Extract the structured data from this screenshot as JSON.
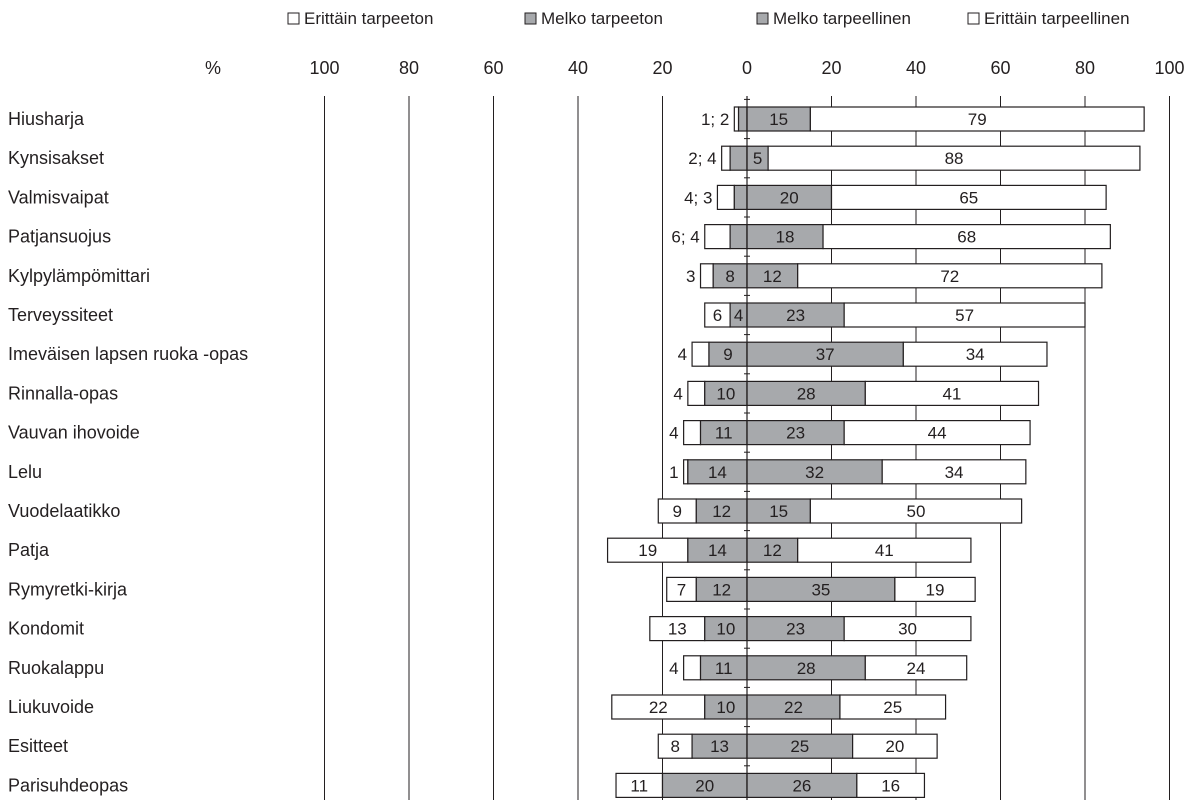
{
  "chart_data": {
    "type": "bar",
    "stacking": "diverging",
    "unit_label": "%",
    "legend": {
      "placement": "top",
      "entries": [
        {
          "label": "Erittäin tarpeeton",
          "color": "#ffffff"
        },
        {
          "label": "Melko tarpeeton",
          "color": "#a7a9ac"
        },
        {
          "label": "Melko tarpeellinen",
          "color": "#a7a9ac"
        },
        {
          "label": "Erittäin tarpeellinen",
          "color": "#ffffff"
        }
      ]
    },
    "x_ticks": [
      "100",
      "80",
      "60",
      "40",
      "20",
      "0",
      "20",
      "40",
      "60",
      "80",
      "100"
    ],
    "xlim": [
      -100,
      100
    ],
    "grid": true,
    "categories": [
      "Hiusharja",
      "Kynsisakset",
      "Valmisvaipat",
      "Patjansuojus",
      "Kylpylämpömittari",
      "Terveyssiteet",
      "Imeväisen lapsen ruoka -opas",
      "Rinnalla-opas",
      "Vauvan ihovoide",
      "Lelu",
      "Vuodelaatikko",
      "Patja",
      "Rymyretki-kirja",
      "Kondomit",
      "Ruokalappu",
      "Liukuvoide",
      "Esitteet",
      "Parisuhdeopas"
    ],
    "series": [
      {
        "name": "Erittäin tarpeeton",
        "values": [
          1,
          2,
          4,
          6,
          3,
          6,
          4,
          4,
          4,
          1,
          9,
          19,
          7,
          13,
          4,
          22,
          8,
          11
        ]
      },
      {
        "name": "Melko tarpeeton",
        "values": [
          2,
          4,
          3,
          4,
          8,
          4,
          9,
          10,
          11,
          14,
          12,
          14,
          12,
          10,
          11,
          10,
          13,
          20
        ]
      },
      {
        "name": "Melko tarpeellinen",
        "values": [
          15,
          5,
          20,
          18,
          12,
          23,
          37,
          28,
          23,
          32,
          15,
          12,
          35,
          23,
          28,
          22,
          25,
          26
        ]
      },
      {
        "name": "Erittäin tarpeellinen",
        "values": [
          79,
          88,
          65,
          68,
          72,
          57,
          34,
          41,
          44,
          34,
          50,
          41,
          19,
          30,
          24,
          25,
          20,
          16
        ]
      }
    ],
    "negative_labels": [
      "1; 2",
      "2; 4",
      "4; 3",
      "6; 4",
      "3",
      "",
      "4",
      "4",
      "4",
      "1",
      "",
      "",
      "",
      "",
      "4",
      "",
      "",
      ""
    ],
    "inside_labels": {
      "Erittäin tarpeeton": [
        "",
        "",
        "",
        "",
        "",
        "6",
        "",
        "",
        "",
        "",
        "9",
        "19",
        "7",
        "13",
        "",
        "22",
        "8",
        "11"
      ],
      "Melko tarpeeton": [
        "",
        "",
        "",
        "",
        "8",
        "4",
        "9",
        "10",
        "11",
        "14",
        "12",
        "14",
        "12",
        "10",
        "11",
        "10",
        "13",
        "20"
      ],
      "Melko tarpeellinen": [
        "15",
        "5",
        "20",
        "18",
        "12",
        "23",
        "37",
        "28",
        "23",
        "32",
        "15",
        "12",
        "35",
        "23",
        "28",
        "22",
        "25",
        "26"
      ],
      "Erittäin tarpeellinen": [
        "79",
        "88",
        "65",
        "68",
        "72",
        "57",
        "34",
        "41",
        "44",
        "34",
        "50",
        "41",
        "19",
        "30",
        "24",
        "25",
        "20",
        "16"
      ]
    }
  }
}
